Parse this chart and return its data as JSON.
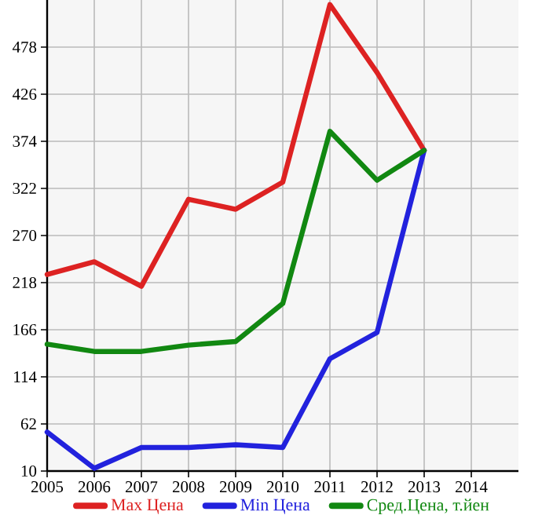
{
  "chart_data": {
    "type": "line",
    "x": [
      2005,
      2006,
      2007,
      2008,
      2009,
      2010,
      2011,
      2012,
      2013
    ],
    "series": [
      {
        "name": "Max Цена",
        "color": "#dd2222",
        "values": [
          227,
          241,
          214,
          310,
          299,
          329,
          525,
          450,
          364
        ]
      },
      {
        "name": "Min Цена",
        "color": "#2222dd",
        "values": [
          53,
          13,
          36,
          36,
          39,
          36,
          134,
          163,
          364
        ]
      },
      {
        "name": "Сред.Цена, т.йен",
        "color": "#118811",
        "values": [
          150,
          142,
          142,
          149,
          153,
          195,
          385,
          331,
          364
        ]
      }
    ],
    "xlim": [
      2005,
      2015
    ],
    "xticks": [
      2005,
      2006,
      2007,
      2008,
      2009,
      2010,
      2011,
      2012,
      2013,
      2014
    ],
    "ylim": [
      10,
      530
    ],
    "yticks": [
      10,
      62,
      114,
      166,
      218,
      270,
      322,
      374,
      426,
      478
    ],
    "grid": true,
    "legend": "bottom",
    "marker": "none",
    "line_style": "solid"
  }
}
